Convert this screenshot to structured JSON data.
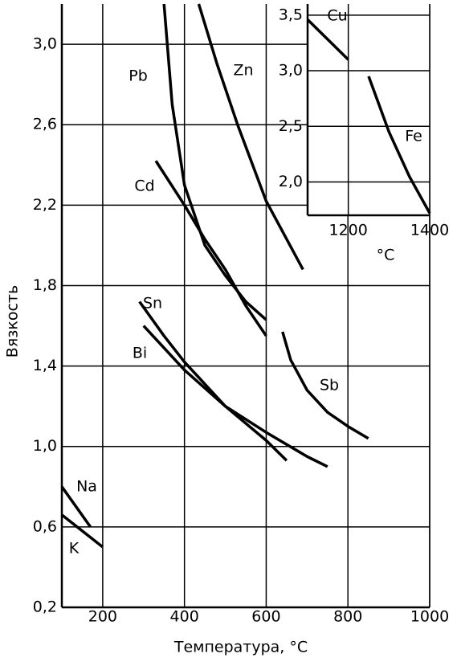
{
  "chart_data": [
    {
      "type": "line",
      "x_label": "Температура, °C",
      "y_label": "Вязкость",
      "xlim": [
        100,
        1000
      ],
      "ylim": [
        0.2,
        3.2
      ],
      "xticks": [
        200,
        400,
        600,
        800,
        1000
      ],
      "yticks": [
        {
          "value": 0.2,
          "label": "0,2"
        },
        {
          "value": 0.6,
          "label": "0,6"
        },
        {
          "value": 1.0,
          "label": "1,0"
        },
        {
          "value": 1.4,
          "label": "1,4"
        },
        {
          "value": 1.8,
          "label": "1,8"
        },
        {
          "value": 2.2,
          "label": "2,2"
        },
        {
          "value": 2.6,
          "label": "2,6"
        },
        {
          "value": 3.0,
          "label": "3,0"
        }
      ],
      "grid": true,
      "series": [
        {
          "name": "Pb",
          "color": "#000000",
          "x": [
            350,
            370,
            400,
            450,
            500,
            550,
            600
          ],
          "values": [
            3.2,
            2.7,
            2.3,
            2.0,
            1.85,
            1.72,
            1.63
          ]
        },
        {
          "name": "Zn",
          "color": "#000000",
          "x": [
            435,
            480,
            530,
            600,
            690
          ],
          "values": [
            3.2,
            2.9,
            2.6,
            2.22,
            1.88
          ]
        },
        {
          "name": "Cd",
          "color": "#000000",
          "x": [
            330,
            400,
            450,
            500,
            550,
            600
          ],
          "values": [
            2.42,
            2.2,
            2.03,
            1.88,
            1.7,
            1.55
          ]
        },
        {
          "name": "Sn",
          "color": "#000000",
          "x": [
            290,
            350,
            400,
            500,
            600,
            650
          ],
          "values": [
            1.72,
            1.55,
            1.42,
            1.2,
            1.03,
            0.93
          ]
        },
        {
          "name": "Bi",
          "color": "#000000",
          "x": [
            300,
            400,
            500,
            600,
            700,
            750
          ],
          "values": [
            1.6,
            1.38,
            1.2,
            1.07,
            0.95,
            0.9
          ]
        },
        {
          "name": "Sb",
          "color": "#000000",
          "x": [
            640,
            660,
            700,
            750,
            800,
            850
          ],
          "values": [
            1.57,
            1.43,
            1.28,
            1.17,
            1.1,
            1.04
          ]
        },
        {
          "name": "Na",
          "color": "#000000",
          "x": [
            100,
            170
          ],
          "values": [
            0.8,
            0.6
          ]
        },
        {
          "name": "K",
          "color": "#000000",
          "x": [
            100,
            200
          ],
          "values": [
            0.66,
            0.5
          ]
        }
      ]
    },
    {
      "type": "line",
      "x_label": "°C",
      "xlim": [
        1100,
        1400
      ],
      "ylim": [
        1.7,
        3.6
      ],
      "xticks": [
        1200,
        1400
      ],
      "yticks": [
        {
          "value": 2.0,
          "label": "2,0"
        },
        {
          "value": 2.5,
          "label": "2,5"
        },
        {
          "value": 3.0,
          "label": "3,0"
        },
        {
          "value": 3.5,
          "label": "3,5"
        }
      ],
      "grid": true,
      "series": [
        {
          "name": "Cu",
          "color": "#000000",
          "x": [
            1100,
            1200
          ],
          "values": [
            3.46,
            3.1
          ]
        },
        {
          "name": "Fe",
          "color": "#000000",
          "x": [
            1250,
            1300,
            1350,
            1400
          ],
          "values": [
            2.95,
            2.45,
            2.05,
            1.72
          ]
        }
      ]
    }
  ]
}
